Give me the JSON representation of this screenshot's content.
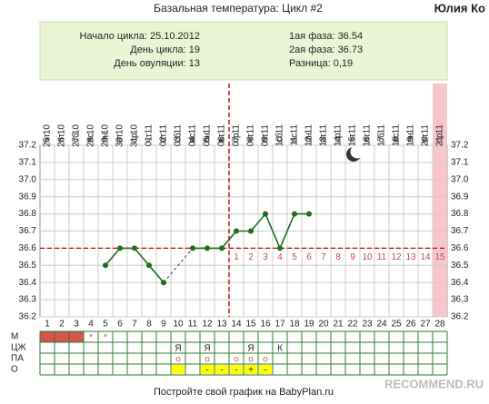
{
  "header": {
    "title": "Базальная температура: Цикл #2",
    "user": "Юлия Ко"
  },
  "summary": {
    "left": [
      "Начало цикла: 25.10.2012",
      "День цикла: 19",
      "День овуляции: 13"
    ],
    "right": [
      "1ая фаза: 36.54",
      "2ая фаза: 36.73",
      "Разница: 0,19"
    ]
  },
  "chart_data": {
    "type": "line",
    "categories": [
      1,
      2,
      3,
      4,
      5,
      6,
      7,
      8,
      9,
      10,
      11,
      12,
      13,
      14,
      15,
      16,
      17,
      18,
      19,
      20,
      21,
      22,
      23,
      24,
      25,
      26,
      27,
      28
    ],
    "dates": [
      "25.10",
      "26.10",
      "27.10",
      "28.10",
      "29.10",
      "30.10",
      "31.10",
      "01.11",
      "02.11",
      "03.11",
      "04.11",
      "05.11",
      "06.11",
      "07.11",
      "08.11",
      "09.11",
      "10.11",
      "11.11",
      "12.11",
      "13.11",
      "14.11",
      "15.11",
      "16.11",
      "17.11",
      "18.11",
      "19.11",
      "20.11",
      "21.11"
    ],
    "weekdays": [
      "чт",
      "пт",
      "сб",
      "вс",
      "пн",
      "вт",
      "ср",
      "чт",
      "пт",
      "сб",
      "вс",
      "пн",
      "вт",
      "ср",
      "чт",
      "пт",
      "сб",
      "вс",
      "пн",
      "вт",
      "ср",
      "чт",
      "пт",
      "сб",
      "вс",
      "пн",
      "вт",
      "ср"
    ],
    "series": [
      {
        "name": "Температура",
        "color": "#1e6e1e",
        "values": [
          null,
          null,
          null,
          null,
          36.5,
          36.6,
          36.6,
          36.5,
          36.4,
          null,
          36.6,
          36.6,
          36.6,
          36.7,
          36.7,
          36.8,
          36.6,
          36.8,
          36.8,
          null,
          null,
          null,
          null,
          null,
          null,
          null,
          null,
          null
        ]
      }
    ],
    "ylim": [
      36.2,
      37.2
    ],
    "yticks": [
      36.2,
      36.3,
      36.4,
      36.5,
      36.6,
      36.7,
      36.8,
      36.9,
      {
        "value": 37,
        "label": "37.0"
      },
      37.1,
      37.2
    ],
    "coverline": 36.6,
    "ovulation_day": 13,
    "marker_color": "#cc0000",
    "luteal": {
      "start_day": 14,
      "labels": [
        1,
        2,
        3,
        4,
        5,
        6,
        7,
        8,
        9,
        10,
        11,
        12,
        13,
        14,
        15
      ]
    },
    "highlight_day": 28,
    "grid": true
  },
  "table": {
    "row_labels": [
      "М",
      "ЦЖ",
      "ПА",
      "О"
    ],
    "menses": {
      "bleeding_days": [
        1,
        2,
        3
      ],
      "marks": [
        {
          "day": 4,
          "mark": "*"
        },
        {
          "day": 5,
          "mark": "*"
        }
      ]
    },
    "cm": [
      {
        "day": 10,
        "mark": "Я"
      },
      {
        "day": 12,
        "mark": "Я"
      },
      {
        "day": 15,
        "mark": "Я"
      },
      {
        "day": 17,
        "mark": "К"
      }
    ],
    "pa": [
      {
        "day": 10,
        "mark": "o"
      },
      {
        "day": 12,
        "mark": "o"
      },
      {
        "day": 14,
        "mark": "o"
      },
      {
        "day": 15,
        "mark": "o"
      },
      {
        "day": 16,
        "mark": "o"
      }
    ],
    "opk": [
      {
        "day": 10
      },
      {
        "day": 12,
        "mark": "-"
      },
      {
        "day": 13,
        "mark": "-"
      },
      {
        "day": 14,
        "mark": "-"
      },
      {
        "day": 15,
        "mark": "+"
      },
      {
        "day": 16,
        "mark": "-"
      }
    ]
  },
  "footer": "Постройте свой график на BabyPlan.ru",
  "watermark": "RECOMMEND.RU"
}
